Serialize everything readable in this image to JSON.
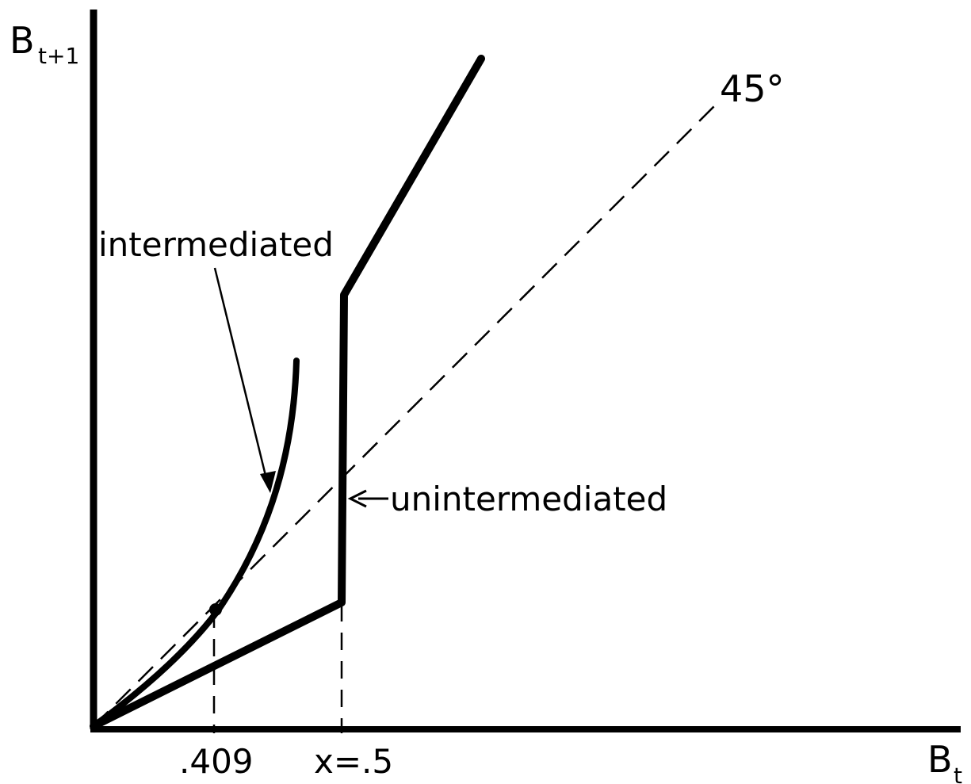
{
  "axes": {
    "y_label_main": "B",
    "y_label_sub": "t+1",
    "x_label_main": "B",
    "x_label_sub": "t"
  },
  "reference_line": {
    "label": "45°"
  },
  "curves": {
    "intermediated": {
      "label": "intermediated"
    },
    "unintermediated": {
      "label": "unintermediated"
    }
  },
  "x_ticks": {
    "intersection": ".409",
    "threshold": "x=.5"
  },
  "colors": {
    "ink": "#000000",
    "background": "#ffffff"
  }
}
